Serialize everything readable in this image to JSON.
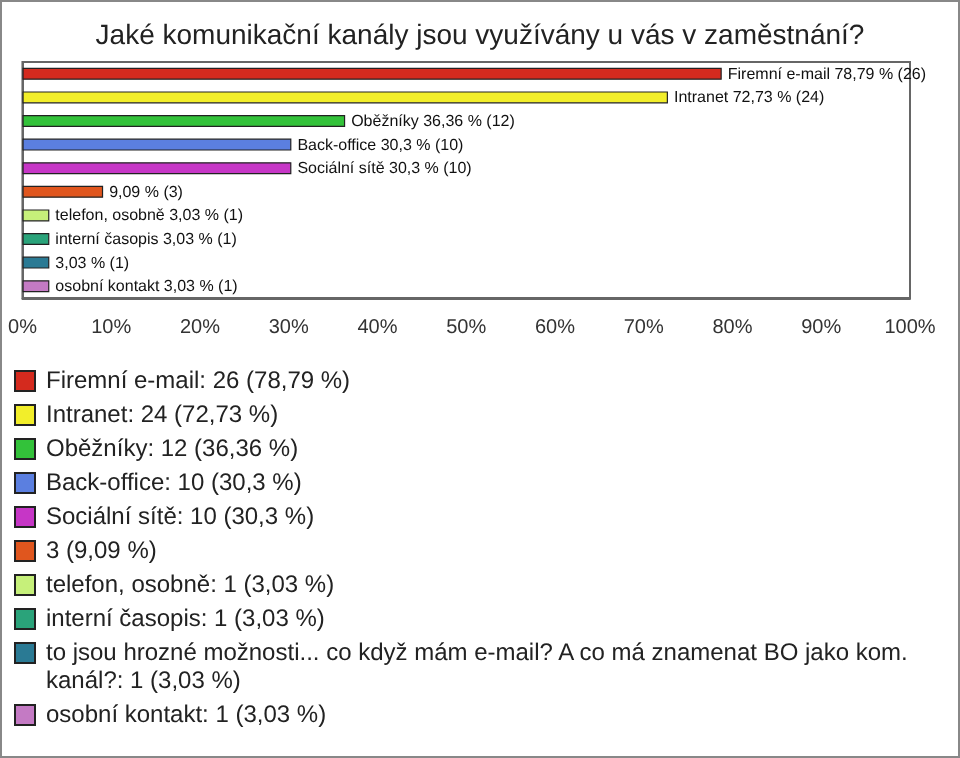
{
  "chart_data": {
    "type": "bar",
    "orientation": "horizontal",
    "title": "Jaké komunikační kanály jsou využívány u vás v zaměstnání?",
    "categories": [
      "Firemní e-mail",
      "Intranet",
      "Oběžníky",
      "Back-office",
      "Sociální sítě",
      null,
      "telefon, osobně",
      "interní časopis",
      null,
      "osobní kontakt"
    ],
    "values": [
      78.79,
      72.73,
      36.36,
      30.3,
      30.3,
      9.09,
      3.03,
      3.03,
      3.03,
      3.03
    ],
    "colors": [
      "#d42a1e",
      "#f2ee2a",
      "#33c23a",
      "#5b7fe0",
      "#c636c6",
      "#e0561e",
      "#c6f07a",
      "#2aa37a",
      "#2a7a94",
      "#c47ac4"
    ],
    "value_labels": [
      "78,79 % (26)",
      "72,73 % (24)",
      "36,36 % (12)",
      "30,3 % (10)",
      "30,3 % (10)",
      "9,09 % (3)",
      "3,03 % (1)",
      "3,03 % (1)",
      "3,03 % (1)",
      "3,03 % (1)"
    ],
    "xlim": [
      0,
      100
    ],
    "xticks": [
      {
        "value": 0,
        "label": "0%"
      },
      {
        "value": 10,
        "label": "10%"
      },
      {
        "value": 20,
        "label": "20%"
      },
      {
        "value": 30,
        "label": "30%"
      },
      {
        "value": 40,
        "label": "40%"
      },
      {
        "value": 50,
        "label": "50%"
      },
      {
        "value": 60,
        "label": "60%"
      },
      {
        "value": 70,
        "label": "70%"
      },
      {
        "value": 80,
        "label": "80%"
      },
      {
        "value": 90,
        "label": "90%"
      },
      {
        "value": 100,
        "label": "100%"
      }
    ],
    "tick_labels": "x",
    "grid": false,
    "annotations": [
      "Firemní e-mail: 26 (78,79 %)",
      "Intranet: 24 (72,73 %)",
      "Oběžníky: 12 (36,36 %)",
      "Back-office: 10 (30,3 %)",
      "Sociální sítě: 10 (30,3 %)",
      "3 (9,09 %)",
      "telefon, osobně: 1 (3,03 %)",
      "interní časopis: 1 (3,03 %)",
      "to jsou hrozné možnosti... co když mám e-mail? A co má znamenat BO jako kom. kanál?: 1 (3,03 %)",
      "osobní kontakt: 1 (3,03 %)"
    ]
  }
}
